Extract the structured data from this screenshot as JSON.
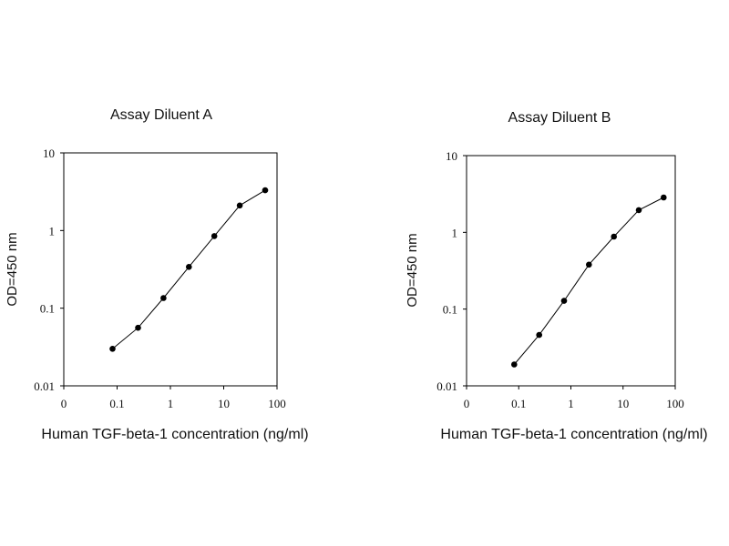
{
  "chart_data": [
    {
      "type": "line",
      "title": "Assay Diluent A",
      "xlabel": "Human TGF-beta-1 concentration (ng/ml)",
      "ylabel": "OD=450 nm",
      "x_scale": "log",
      "y_scale": "log",
      "xlim": [
        0.01,
        100
      ],
      "ylim": [
        0.01,
        10
      ],
      "x_tick_labels": [
        "0",
        "0.1",
        "1",
        "10",
        "100"
      ],
      "y_tick_labels": [
        "0.01",
        "0.1",
        "1",
        "10"
      ],
      "grid": false,
      "line_color": "#000000",
      "marker_color": "#000000",
      "series": [
        {
          "x": [
            0.082,
            0.247,
            0.74,
            2.22,
            6.67,
            20,
            60
          ],
          "y": [
            0.03,
            0.056,
            0.135,
            0.34,
            0.85,
            2.1,
            3.3
          ]
        }
      ]
    },
    {
      "type": "line",
      "title": "Assay Diluent B",
      "xlabel": "Human TGF-beta-1 concentration (ng/ml)",
      "ylabel": "OD=450 nm",
      "x_scale": "log",
      "y_scale": "log",
      "xlim": [
        0.01,
        100
      ],
      "ylim": [
        0.01,
        10
      ],
      "x_tick_labels": [
        "0",
        "0.1",
        "1",
        "10",
        "100"
      ],
      "y_tick_labels": [
        "0.01",
        "0.1",
        "1",
        "10"
      ],
      "grid": false,
      "line_color": "#000000",
      "marker_color": "#000000",
      "series": [
        {
          "x": [
            0.082,
            0.247,
            0.74,
            2.22,
            6.67,
            20,
            60
          ],
          "y": [
            0.019,
            0.046,
            0.128,
            0.38,
            0.88,
            1.95,
            2.85
          ]
        }
      ]
    }
  ]
}
